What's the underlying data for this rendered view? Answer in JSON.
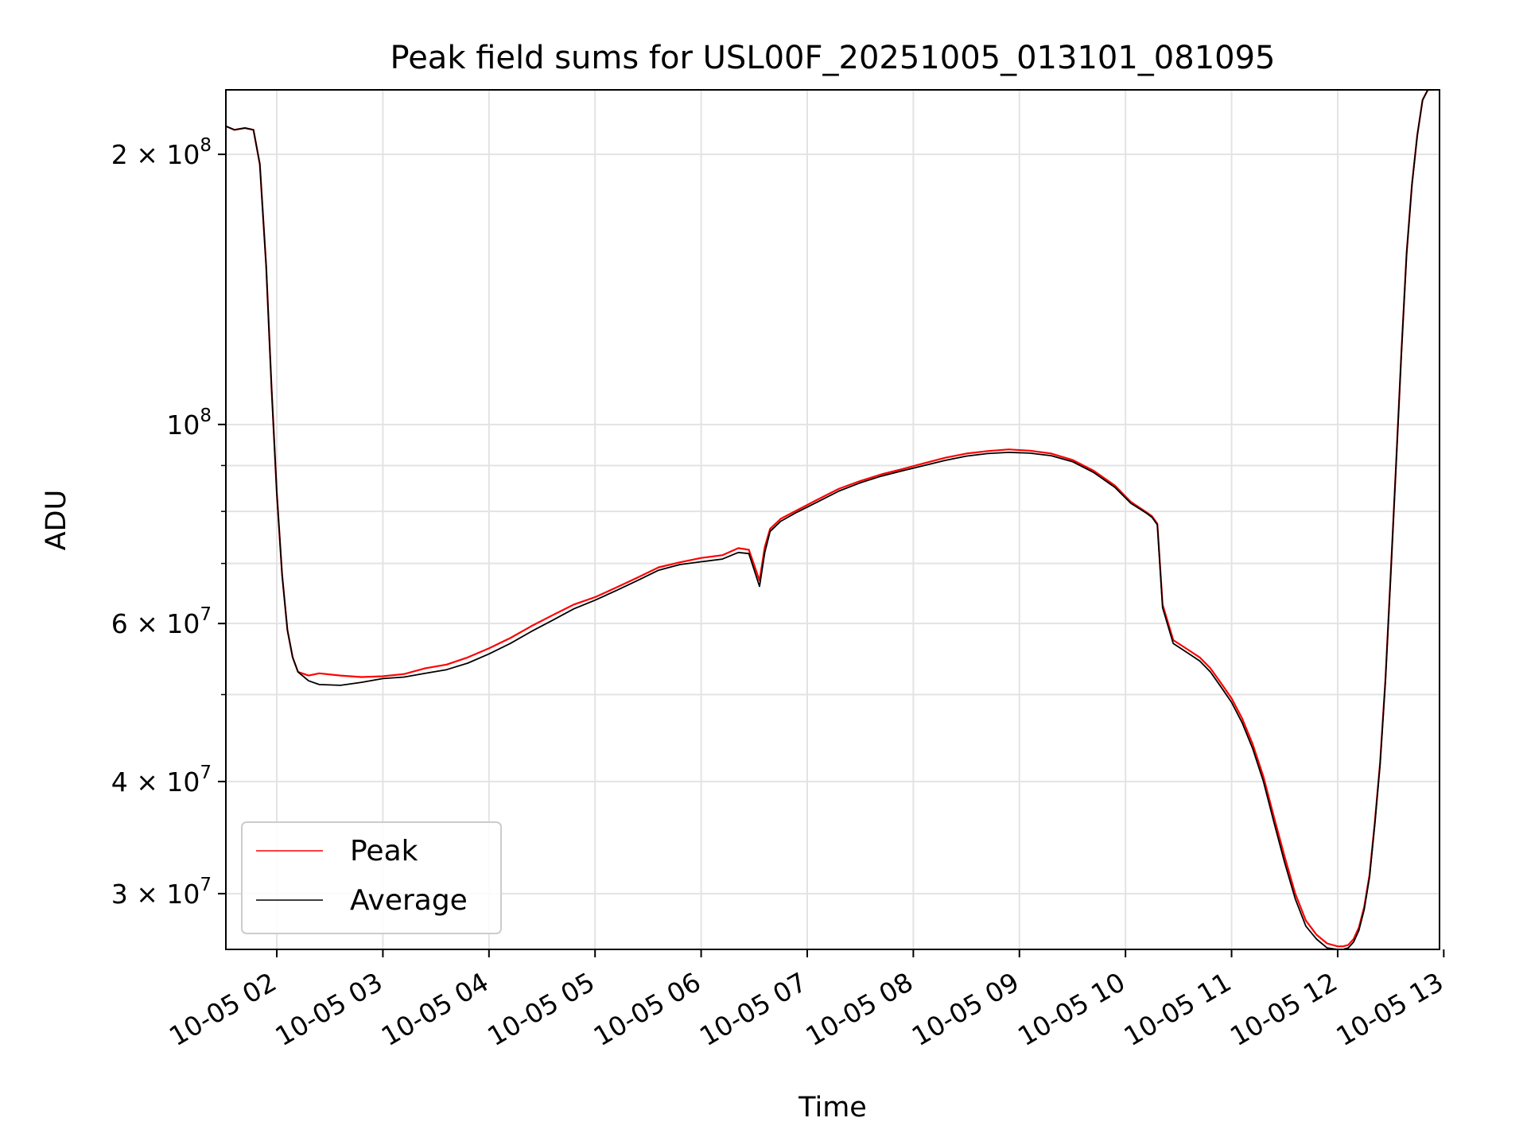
{
  "chart_data": {
    "type": "line",
    "title": "Peak field sums for USL00F_20251005_013101_081095",
    "xlabel": "Time",
    "ylabel": "ADU",
    "yscale": "log",
    "xlim": [
      1.52,
      12.96
    ],
    "ylim": [
      26000000,
      236000000
    ],
    "grid": true,
    "legend_position": "lower-left",
    "x_ticks": [
      {
        "value": 2,
        "label": "10-05 02"
      },
      {
        "value": 3,
        "label": "10-05 03"
      },
      {
        "value": 4,
        "label": "10-05 04"
      },
      {
        "value": 5,
        "label": "10-05 05"
      },
      {
        "value": 6,
        "label": "10-05 06"
      },
      {
        "value": 7,
        "label": "10-05 07"
      },
      {
        "value": 8,
        "label": "10-05 08"
      },
      {
        "value": 9,
        "label": "10-05 09"
      },
      {
        "value": 10,
        "label": "10-05 10"
      },
      {
        "value": 11,
        "label": "10-05 11"
      },
      {
        "value": 12,
        "label": "10-05 12"
      },
      {
        "value": 13,
        "label": "10-05 13"
      }
    ],
    "y_ticks": [
      {
        "value": 30000000,
        "base": "3 × 10",
        "exp": "7"
      },
      {
        "value": 40000000,
        "base": "4 × 10",
        "exp": "7"
      },
      {
        "value": 60000000,
        "base": "6 × 10",
        "exp": "7"
      },
      {
        "value": 100000000,
        "base": "10",
        "exp": "8"
      },
      {
        "value": 200000000,
        "base": "2 × 10",
        "exp": "8"
      }
    ],
    "y_minor_ticks": [
      50000000,
      70000000,
      80000000,
      90000000
    ],
    "series": [
      {
        "name": "Peak",
        "color": "#ff0000",
        "x": [
          1.52,
          1.6,
          1.7,
          1.78,
          1.84,
          1.9,
          1.95,
          2.0,
          2.05,
          2.1,
          2.15,
          2.2,
          2.3,
          2.4,
          2.6,
          2.8,
          3.0,
          3.2,
          3.4,
          3.6,
          3.8,
          4.0,
          4.2,
          4.4,
          4.6,
          4.8,
          5.0,
          5.2,
          5.4,
          5.6,
          5.8,
          6.0,
          6.2,
          6.35,
          6.45,
          6.55,
          6.6,
          6.65,
          6.75,
          6.9,
          7.1,
          7.3,
          7.5,
          7.7,
          7.9,
          8.1,
          8.3,
          8.5,
          8.7,
          8.9,
          9.1,
          9.3,
          9.5,
          9.7,
          9.9,
          10.05,
          10.15,
          10.2,
          10.25,
          10.3,
          10.35,
          10.45,
          10.6,
          10.7,
          10.8,
          10.9,
          11.0,
          11.1,
          11.2,
          11.3,
          11.4,
          11.5,
          11.6,
          11.7,
          11.8,
          11.9,
          12.0,
          12.05,
          12.1,
          12.15,
          12.2,
          12.25,
          12.3,
          12.35,
          12.4,
          12.45,
          12.5,
          12.55,
          12.6,
          12.65,
          12.7,
          12.75,
          12.8,
          12.85,
          12.9
        ],
        "y": [
          215000000,
          213000000,
          214000000,
          213000000,
          195000000,
          150000000,
          110000000,
          84000000,
          68000000,
          59000000,
          55000000,
          53000000,
          52500000,
          52800000,
          52500000,
          52300000,
          52400000,
          52700000,
          53500000,
          54000000,
          55000000,
          56300000,
          57800000,
          59600000,
          61300000,
          63000000,
          64200000,
          65800000,
          67500000,
          69300000,
          70200000,
          71000000,
          71500000,
          72800000,
          72500000,
          67000000,
          73000000,
          76500000,
          78500000,
          80200000,
          82500000,
          84800000,
          86500000,
          88000000,
          89200000,
          90500000,
          91800000,
          92800000,
          93400000,
          93800000,
          93500000,
          92800000,
          91300000,
          88800000,
          85500000,
          82000000,
          80500000,
          79800000,
          79000000,
          77500000,
          63000000,
          57500000,
          56000000,
          55000000,
          53500000,
          51500000,
          49500000,
          47000000,
          44000000,
          40500000,
          36500000,
          33000000,
          30000000,
          28000000,
          27000000,
          26400000,
          26200000,
          26200000,
          26300000,
          26700000,
          27500000,
          29000000,
          31500000,
          36000000,
          42000000,
          52000000,
          68000000,
          90000000,
          120000000,
          155000000,
          185000000,
          210000000,
          230000000,
          236000000,
          236000000
        ]
      },
      {
        "name": "Average",
        "color": "#000000",
        "x": [
          1.52,
          1.6,
          1.7,
          1.78,
          1.84,
          1.9,
          1.95,
          2.0,
          2.05,
          2.1,
          2.15,
          2.2,
          2.3,
          2.4,
          2.6,
          2.8,
          3.0,
          3.2,
          3.4,
          3.6,
          3.8,
          4.0,
          4.2,
          4.4,
          4.6,
          4.8,
          5.0,
          5.2,
          5.4,
          5.6,
          5.8,
          6.0,
          6.2,
          6.35,
          6.45,
          6.55,
          6.6,
          6.65,
          6.75,
          6.9,
          7.1,
          7.3,
          7.5,
          7.7,
          7.9,
          8.1,
          8.3,
          8.5,
          8.7,
          8.9,
          9.1,
          9.3,
          9.5,
          9.7,
          9.9,
          10.05,
          10.15,
          10.2,
          10.25,
          10.3,
          10.35,
          10.45,
          10.6,
          10.7,
          10.8,
          10.9,
          11.0,
          11.1,
          11.2,
          11.3,
          11.4,
          11.5,
          11.6,
          11.7,
          11.8,
          11.9,
          12.0,
          12.05,
          12.1,
          12.15,
          12.2,
          12.25,
          12.3,
          12.35,
          12.4,
          12.45,
          12.5,
          12.55,
          12.6,
          12.65,
          12.7,
          12.75,
          12.8,
          12.85,
          12.9
        ],
        "y": [
          215000000,
          213000000,
          214000000,
          213000000,
          195000000,
          150000000,
          110000000,
          84000000,
          68000000,
          59000000,
          55000000,
          53000000,
          51800000,
          51300000,
          51200000,
          51600000,
          52100000,
          52300000,
          52800000,
          53300000,
          54200000,
          55500000,
          57000000,
          58800000,
          60500000,
          62300000,
          63700000,
          65300000,
          67000000,
          68800000,
          69800000,
          70300000,
          70800000,
          72000000,
          71800000,
          66000000,
          72000000,
          76000000,
          78000000,
          79800000,
          82000000,
          84300000,
          86100000,
          87600000,
          88800000,
          90000000,
          91200000,
          92200000,
          92800000,
          93100000,
          92900000,
          92300000,
          90900000,
          88400000,
          85100000,
          81700000,
          80300000,
          79600000,
          78800000,
          77300000,
          62500000,
          57000000,
          55500000,
          54500000,
          53000000,
          51000000,
          49000000,
          46500000,
          43500000,
          40000000,
          36000000,
          32500000,
          29600000,
          27600000,
          26700000,
          26100000,
          26000000,
          26000000,
          26100000,
          26500000,
          27300000,
          28800000,
          31300000,
          35800000,
          41800000,
          51800000,
          67800000,
          89800000,
          119800000,
          154800000,
          184800000,
          209800000,
          229800000,
          236000000,
          236000000
        ]
      }
    ]
  }
}
